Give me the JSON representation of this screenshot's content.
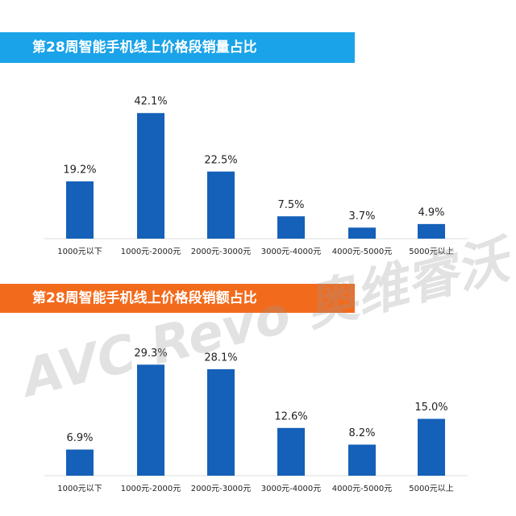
{
  "watermark": "AVC Revo 奥维睿沃",
  "chart_data": [
    {
      "type": "bar",
      "title": "第28周智能手机线上价格段销量占比",
      "title_color": "#1aa3e8",
      "color": "#1560b8",
      "categories": [
        "1000元以下",
        "1000元-2000元",
        "2000元-3000元",
        "3000元-4000元",
        "4000元-5000元",
        "5000元以上"
      ],
      "values": [
        19.2,
        42.1,
        22.5,
        7.5,
        3.7,
        4.9
      ],
      "value_labels": [
        "19.2%",
        "42.1%",
        "22.5%",
        "7.5%",
        "3.7%",
        "4.9%"
      ]
    },
    {
      "type": "bar",
      "title": "第28周智能手机线上价格段销额占比",
      "title_color": "#f26b1d",
      "color": "#1560b8",
      "categories": [
        "1000元以下",
        "1000元-2000元",
        "2000元-3000元",
        "3000元-4000元",
        "4000元-5000元",
        "5000元以上"
      ],
      "values": [
        6.9,
        29.3,
        28.1,
        12.6,
        8.2,
        15.0
      ],
      "value_labels": [
        "6.9%",
        "29.3%",
        "28.1%",
        "12.6%",
        "8.2%",
        "15.0%"
      ]
    }
  ]
}
